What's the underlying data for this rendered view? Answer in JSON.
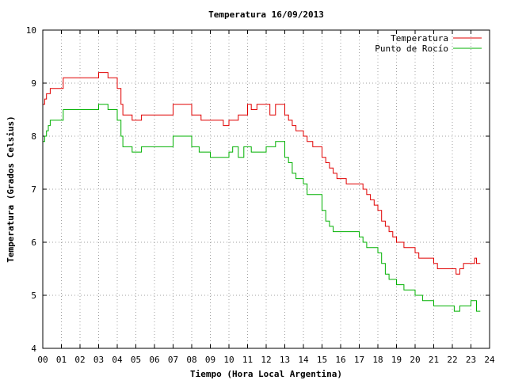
{
  "chart_data": {
    "type": "line",
    "title": "Temperatura 16/09/2013",
    "xlabel": "Tiempo (Hora Local Argentina)",
    "ylabel": "Temperatura (Grados Celsius)",
    "xlim": [
      0,
      24
    ],
    "ylim": [
      4,
      10
    ],
    "grid": true,
    "legend_position": "top-right",
    "x_tick_labels": [
      "00",
      "01",
      "02",
      "03",
      "04",
      "05",
      "06",
      "07",
      "08",
      "09",
      "10",
      "11",
      "12",
      "13",
      "14",
      "15",
      "16",
      "17",
      "18",
      "19",
      "20",
      "21",
      "22",
      "23",
      "24"
    ],
    "y_tick_labels": [
      "4",
      "5",
      "6",
      "7",
      "8",
      "9",
      "10"
    ],
    "series": [
      {
        "name": "Temperatura",
        "color": "#e00000",
        "x": [
          0.0,
          0.1,
          0.2,
          0.3,
          0.4,
          1.0,
          1.1,
          2.0,
          2.5,
          3.0,
          3.2,
          3.4,
          3.5,
          3.6,
          4.0,
          4.2,
          4.3,
          4.5,
          4.8,
          5.0,
          5.3,
          5.5,
          6.0,
          6.5,
          7.0,
          7.3,
          7.5,
          8.0,
          8.2,
          8.4,
          8.5,
          9.0,
          9.3,
          9.5,
          9.7,
          10.0,
          10.2,
          10.5,
          10.8,
          11.0,
          11.2,
          11.5,
          11.8,
          12.0,
          12.2,
          12.5,
          12.8,
          13.0,
          13.2,
          13.4,
          13.6,
          13.8,
          14.0,
          14.2,
          14.5,
          14.8,
          15.0,
          15.2,
          15.4,
          15.6,
          15.8,
          16.0,
          16.3,
          16.5,
          16.8,
          17.0,
          17.2,
          17.4,
          17.6,
          17.8,
          18.0,
          18.2,
          18.4,
          18.6,
          18.8,
          19.0,
          19.2,
          19.4,
          19.6,
          19.8,
          20.0,
          20.2,
          20.4,
          20.6,
          20.8,
          21.0,
          21.2,
          21.4,
          21.6,
          21.8,
          22.0,
          22.1,
          22.2,
          22.4,
          22.6,
          22.8,
          23.0,
          23.2,
          23.3,
          23.4,
          23.5
        ],
        "values": [
          8.6,
          8.7,
          8.8,
          8.8,
          8.9,
          8.9,
          9.1,
          9.1,
          9.1,
          9.2,
          9.2,
          9.2,
          9.1,
          9.1,
          8.9,
          8.6,
          8.4,
          8.4,
          8.3,
          8.3,
          8.4,
          8.4,
          8.4,
          8.4,
          8.6,
          8.6,
          8.6,
          8.4,
          8.4,
          8.4,
          8.3,
          8.3,
          8.3,
          8.3,
          8.2,
          8.3,
          8.3,
          8.4,
          8.4,
          8.6,
          8.5,
          8.6,
          8.6,
          8.6,
          8.4,
          8.6,
          8.6,
          8.4,
          8.3,
          8.2,
          8.1,
          8.1,
          8.0,
          7.9,
          7.8,
          7.8,
          7.6,
          7.5,
          7.4,
          7.3,
          7.2,
          7.2,
          7.1,
          7.1,
          7.1,
          7.1,
          7.0,
          6.9,
          6.8,
          6.7,
          6.6,
          6.4,
          6.3,
          6.2,
          6.1,
          6.0,
          6.0,
          5.9,
          5.9,
          5.9,
          5.8,
          5.7,
          5.7,
          5.7,
          5.7,
          5.6,
          5.5,
          5.5,
          5.5,
          5.5,
          5.5,
          5.5,
          5.4,
          5.5,
          5.6,
          5.6,
          5.6,
          5.7,
          5.6,
          5.6,
          5.6
        ]
      },
      {
        "name": "Punto de Rocío",
        "color": "#00b000",
        "x": [
          0.0,
          0.1,
          0.2,
          0.3,
          0.4,
          1.0,
          1.1,
          2.0,
          2.5,
          3.0,
          3.2,
          3.4,
          3.5,
          3.6,
          4.0,
          4.2,
          4.3,
          4.5,
          4.8,
          5.0,
          5.3,
          5.5,
          6.0,
          6.5,
          7.0,
          7.3,
          7.5,
          8.0,
          8.2,
          8.4,
          8.5,
          9.0,
          9.3,
          9.5,
          9.7,
          10.0,
          10.2,
          10.5,
          10.8,
          11.0,
          11.2,
          11.5,
          11.8,
          12.0,
          12.2,
          12.5,
          12.8,
          13.0,
          13.2,
          13.4,
          13.6,
          13.8,
          14.0,
          14.2,
          14.5,
          14.8,
          15.0,
          15.2,
          15.4,
          15.6,
          15.8,
          16.0,
          16.3,
          16.5,
          16.8,
          17.0,
          17.2,
          17.4,
          17.6,
          17.8,
          18.0,
          18.2,
          18.4,
          18.6,
          18.8,
          19.0,
          19.2,
          19.4,
          19.6,
          19.8,
          20.0,
          20.2,
          20.4,
          20.6,
          20.8,
          21.0,
          21.2,
          21.4,
          21.6,
          21.8,
          22.0,
          22.1,
          22.2,
          22.4,
          22.6,
          22.8,
          23.0,
          23.2,
          23.3,
          23.4,
          23.5
        ],
        "values": [
          7.9,
          8.0,
          8.1,
          8.2,
          8.3,
          8.3,
          8.5,
          8.5,
          8.5,
          8.6,
          8.6,
          8.6,
          8.5,
          8.5,
          8.3,
          8.0,
          7.8,
          7.8,
          7.7,
          7.7,
          7.8,
          7.8,
          7.8,
          7.8,
          8.0,
          8.0,
          8.0,
          7.8,
          7.8,
          7.7,
          7.7,
          7.6,
          7.6,
          7.6,
          7.6,
          7.7,
          7.8,
          7.6,
          7.8,
          7.8,
          7.7,
          7.7,
          7.7,
          7.8,
          7.8,
          7.9,
          7.9,
          7.6,
          7.5,
          7.3,
          7.2,
          7.2,
          7.1,
          6.9,
          6.9,
          6.9,
          6.6,
          6.4,
          6.3,
          6.2,
          6.2,
          6.2,
          6.2,
          6.2,
          6.2,
          6.1,
          6.0,
          5.9,
          5.9,
          5.9,
          5.8,
          5.6,
          5.4,
          5.3,
          5.3,
          5.2,
          5.2,
          5.1,
          5.1,
          5.1,
          5.0,
          5.0,
          4.9,
          4.9,
          4.9,
          4.8,
          4.8,
          4.8,
          4.8,
          4.8,
          4.8,
          4.7,
          4.7,
          4.8,
          4.8,
          4.8,
          4.9,
          4.9,
          4.7,
          4.7,
          4.7
        ]
      }
    ]
  }
}
